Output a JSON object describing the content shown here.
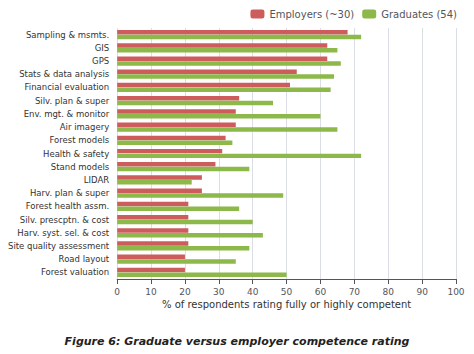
{
  "chart_data": {
    "type": "bar",
    "orientation": "horizontal",
    "title": "Figure 6: Graduate versus employer competence rating",
    "xlabel": "% of respondents rating fully or highly competent",
    "categories": [
      "Sampling & msmts.",
      "GIS",
      "GPS",
      "Stats & data analysis",
      "Financial evaluation",
      "Silv. plan & super",
      "Env. mgt. & monitor",
      "Air imagery",
      "Forest models",
      "Health & safety",
      "Stand models",
      "LIDAR",
      "Harv. plan & super",
      "Forest health assm.",
      "Silv. prescptn. & cost",
      "Harv. syst. sel. & cost",
      "Site quality assessment",
      "Road layout",
      "Forest valuation"
    ],
    "series": [
      {
        "name": "Employers (~30)",
        "color": "#cd5c5c",
        "values": [
          68,
          62,
          62,
          53,
          51,
          36,
          35,
          35,
          32,
          31,
          29,
          25,
          25,
          21,
          21,
          21,
          21,
          20,
          20
        ]
      },
      {
        "name": "Graduates (54)",
        "color": "#8db84a",
        "values": [
          72,
          65,
          66,
          64,
          63,
          46,
          60,
          65,
          34,
          72,
          39,
          22,
          49,
          36,
          40,
          43,
          39,
          35,
          50
        ]
      }
    ],
    "xlim": [
      0,
      100
    ],
    "xticks": [
      0,
      10,
      20,
      30,
      40,
      50,
      60,
      70,
      80,
      90,
      100
    ],
    "grid": true,
    "legend": "upper right"
  }
}
